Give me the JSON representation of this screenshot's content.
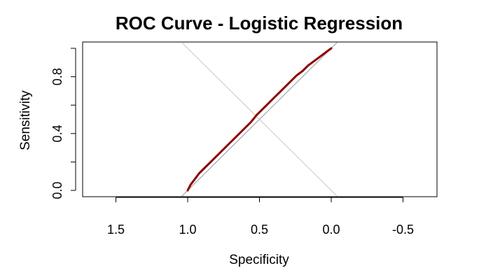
{
  "chart_data": {
    "type": "line",
    "title": "ROC Curve - Logistic Regression",
    "xlabel": "Specificity",
    "ylabel": "Sensitivity",
    "xlim": [
      1.5,
      -0.5
    ],
    "ylim": [
      0,
      1
    ],
    "x_axis_reversed": true,
    "x_ticks": [
      1.5,
      1.0,
      0.5,
      0.0,
      -0.5
    ],
    "x_tick_labels": [
      "1.5",
      "1.0",
      "0.5",
      "0.0",
      "-0.5"
    ],
    "y_ticks": [
      0.0,
      0.2,
      0.4,
      0.6,
      0.8,
      1.0
    ],
    "y_tick_labels": [
      "0.0",
      "",
      "0.4",
      "",
      "0.8",
      ""
    ],
    "grid": false,
    "legend": "none",
    "series": [
      {
        "color": "#8b0000",
        "x": [
          1.0,
          0.98,
          0.95,
          0.92,
          0.88,
          0.84,
          0.8,
          0.76,
          0.72,
          0.68,
          0.64,
          0.6,
          0.56,
          0.52,
          0.48,
          0.44,
          0.4,
          0.36,
          0.32,
          0.28,
          0.24,
          0.2,
          0.16,
          0.12,
          0.08,
          0.04,
          0.0
        ],
        "y": [
          0.0,
          0.04,
          0.08,
          0.12,
          0.16,
          0.2,
          0.24,
          0.28,
          0.32,
          0.36,
          0.4,
          0.44,
          0.48,
          0.53,
          0.57,
          0.61,
          0.65,
          0.69,
          0.73,
          0.77,
          0.81,
          0.84,
          0.88,
          0.91,
          0.94,
          0.97,
          1.0
        ]
      }
    ],
    "reference_lines": [
      {
        "name": "diagonal",
        "x": [
          1.0,
          0.0
        ],
        "y": [
          0.0,
          1.0
        ],
        "color": "#999999"
      },
      {
        "name": "cross-diagonal",
        "x": [
          1.0,
          0.0
        ],
        "y": [
          1.0,
          0.0
        ],
        "color": "#c8c8c8"
      }
    ]
  }
}
